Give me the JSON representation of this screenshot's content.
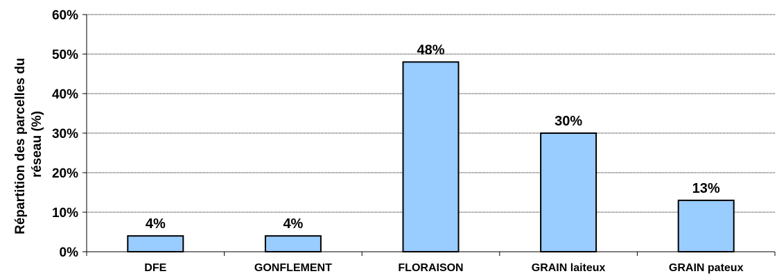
{
  "chart_data": {
    "type": "bar",
    "categories": [
      "DFE",
      "GONFLEMENT",
      "FLORAISON",
      "GRAIN laiteux",
      "GRAIN pateux"
    ],
    "values": [
      4,
      4,
      48,
      30,
      13
    ],
    "data_labels": [
      "4%",
      "4%",
      "48%",
      "30%",
      "13%"
    ],
    "title": "",
    "xlabel": "",
    "ylabel_lines": [
      "Répartition des parcelles du",
      "réseau (%)"
    ],
    "ylim": [
      0,
      60
    ],
    "yticks": [
      0,
      10,
      20,
      30,
      40,
      50,
      60
    ],
    "ytick_labels": [
      "0%",
      "10%",
      "20%",
      "30%",
      "40%",
      "50%",
      "60%"
    ],
    "grid": true,
    "legend": "none",
    "colors": {
      "bar_fill": "#99ccff",
      "bar_stroke": "#000000",
      "grid": "#000000"
    }
  }
}
